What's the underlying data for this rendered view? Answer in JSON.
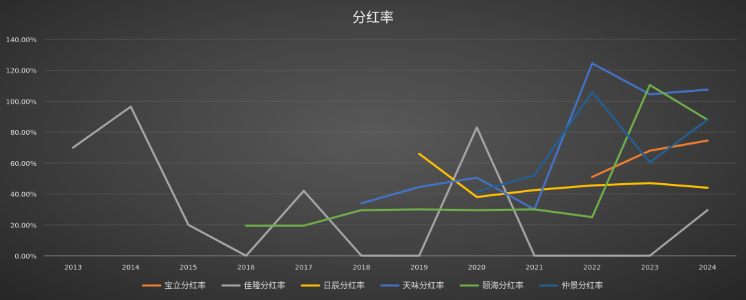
{
  "chart_data": {
    "type": "line",
    "title": "分红率",
    "xlabel": "",
    "ylabel": "",
    "categories": [
      "2013",
      "2014",
      "2015",
      "2016",
      "2017",
      "2018",
      "2019",
      "2020",
      "2021",
      "2022",
      "2023",
      "2024"
    ],
    "yticks": [
      "0.00%",
      "20.00%",
      "40.00%",
      "60.00%",
      "80.00%",
      "100.00%",
      "120.00%",
      "140.00%"
    ],
    "ylim": [
      0,
      140
    ],
    "grid": true,
    "legend_position": "bottom",
    "series": [
      {
        "name": "宝立分红率",
        "color": "#ED7D31",
        "values": [
          null,
          null,
          null,
          null,
          null,
          null,
          null,
          null,
          null,
          51,
          68,
          74.5
        ]
      },
      {
        "name": "佳隆分红率",
        "color": "#A5A5A5",
        "values": [
          70,
          96.5,
          20,
          0,
          42,
          0,
          0,
          83,
          0,
          0,
          0,
          29.5
        ]
      },
      {
        "name": "日辰分红率",
        "color": "#FFC000",
        "values": [
          null,
          null,
          null,
          null,
          null,
          null,
          66,
          38,
          42.5,
          45.5,
          47,
          44
        ]
      },
      {
        "name": "天味分红率",
        "color": "#4472C4",
        "values": [
          null,
          null,
          null,
          null,
          null,
          34,
          44.5,
          50.5,
          30,
          124.5,
          104.5,
          107.5
        ]
      },
      {
        "name": "颐海分红率",
        "color": "#70AD47",
        "values": [
          null,
          null,
          null,
          19.5,
          19.5,
          29.5,
          30,
          29.5,
          30,
          25,
          110.5,
          88
        ]
      },
      {
        "name": "仲景分红率",
        "color": "#255E91",
        "values": [
          null,
          null,
          null,
          null,
          null,
          null,
          null,
          41.5,
          52,
          106,
          60.5,
          88
        ]
      }
    ]
  }
}
